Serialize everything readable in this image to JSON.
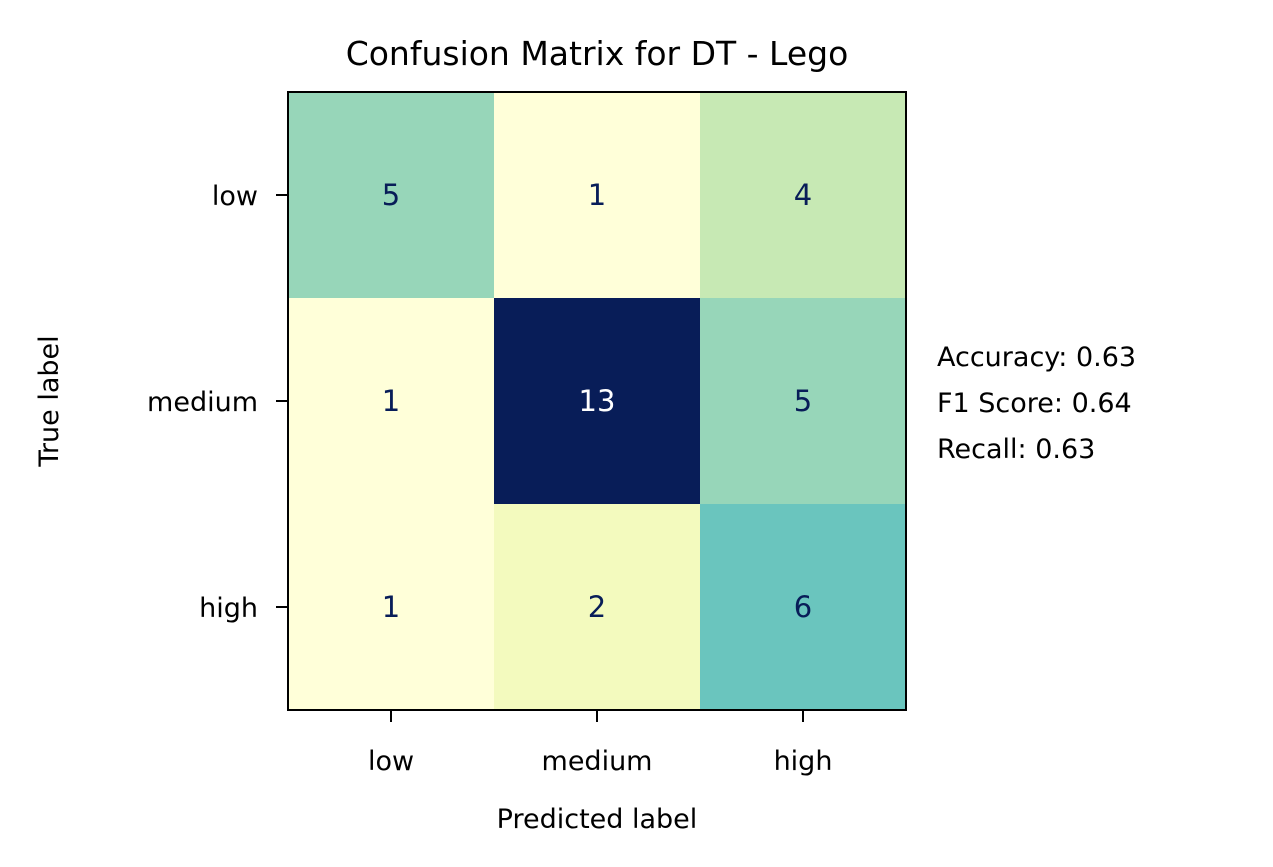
{
  "chart_data": {
    "type": "heatmap",
    "title": "Confusion Matrix for DT - Lego",
    "xlabel": "Predicted label",
    "ylabel": "True label",
    "x_categories": [
      "low",
      "medium",
      "high"
    ],
    "y_categories": [
      "low",
      "medium",
      "high"
    ],
    "matrix": [
      [
        5,
        1,
        4
      ],
      [
        1,
        13,
        5
      ],
      [
        1,
        2,
        6
      ]
    ],
    "colormap": "YlGnBu",
    "colorbar": false,
    "grid": false,
    "annotations": [
      "Accuracy: 0.63",
      "F1 Score: 0.64",
      "Recall: 0.63"
    ]
  },
  "colors": {
    "cell_text_dark": "#081d58",
    "cell_text_light": "#ffffff",
    "axes_edge": "#000000"
  }
}
